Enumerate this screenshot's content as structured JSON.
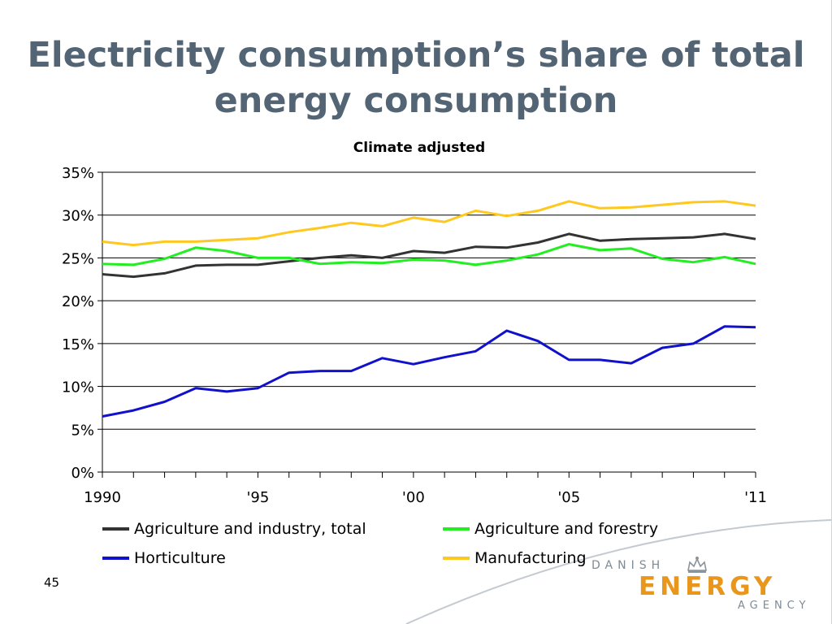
{
  "slide": {
    "title_line1": "Electricity consumption’s share of total",
    "title_line2": "energy consumption",
    "page_number": "45"
  },
  "logo": {
    "top": "DANISH",
    "main": "ENERGY",
    "bottom": "AGENCY",
    "accent_color": "#e8971c"
  },
  "chart_data": {
    "type": "line",
    "title": "Climate adjusted",
    "x": [
      1990,
      1991,
      1992,
      1993,
      1994,
      1995,
      1996,
      1997,
      1998,
      1999,
      2000,
      2001,
      2002,
      2003,
      2004,
      2005,
      2006,
      2007,
      2008,
      2009,
      2010,
      2011
    ],
    "x_tick_labels": [
      "1990",
      "'95",
      "'00",
      "'05",
      "'11"
    ],
    "x_tick_values": [
      1990,
      1995,
      2000,
      2005,
      2011
    ],
    "y_tick_labels": [
      "0%",
      "5%",
      "10%",
      "15%",
      "20%",
      "25%",
      "30%",
      "35%"
    ],
    "ylim": [
      0,
      35
    ],
    "grid": true,
    "legend_position": "bottom",
    "series": [
      {
        "name": "Agriculture and industry, total",
        "color": "#333333",
        "values": [
          23.1,
          22.8,
          23.2,
          24.1,
          24.2,
          24.2,
          24.6,
          25.0,
          25.3,
          25.0,
          25.8,
          25.6,
          26.3,
          26.2,
          26.8,
          27.8,
          27.0,
          27.2,
          27.3,
          27.4,
          27.8,
          27.2
        ]
      },
      {
        "name": "Agriculture and forestry",
        "color": "#22ee22",
        "values": [
          24.3,
          24.2,
          24.9,
          26.2,
          25.8,
          25.0,
          25.0,
          24.3,
          24.5,
          24.4,
          24.8,
          24.7,
          24.2,
          24.7,
          25.4,
          26.6,
          25.9,
          26.1,
          24.9,
          24.5,
          25.1,
          24.3
        ]
      },
      {
        "name": "Horticulture",
        "color": "#1111cc",
        "values": [
          6.5,
          7.2,
          8.2,
          9.8,
          9.4,
          9.8,
          11.6,
          11.8,
          11.8,
          13.3,
          12.6,
          13.4,
          14.1,
          16.5,
          15.3,
          13.1,
          13.1,
          12.7,
          14.5,
          15.0,
          17.0,
          16.9
        ]
      },
      {
        "name": "Manufacturing",
        "color": "#ffc81e",
        "values": [
          26.9,
          26.5,
          26.9,
          26.9,
          27.1,
          27.3,
          28.0,
          28.5,
          29.1,
          28.7,
          29.7,
          29.2,
          30.5,
          29.9,
          30.5,
          31.6,
          30.8,
          30.9,
          31.2,
          31.5,
          31.6,
          31.1
        ]
      }
    ]
  }
}
